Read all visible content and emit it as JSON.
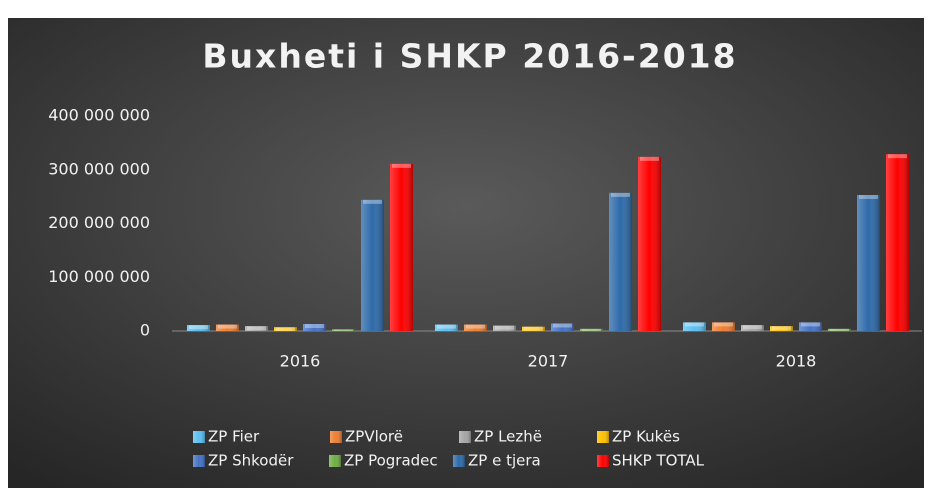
{
  "chart_data": {
    "type": "bar",
    "title": "Buxheti i SHKP 2016-2018",
    "categories": [
      "2016",
      "2017",
      "2018"
    ],
    "series": [
      {
        "name": "ZP Fier",
        "color": "#5bbef0",
        "values": [
          11000000,
          12000000,
          16000000
        ]
      },
      {
        "name": "ZPVlorë",
        "color": "#ed7d31",
        "values": [
          12000000,
          12000000,
          16000000
        ]
      },
      {
        "name": "ZP Lezhë",
        "color": "#a5a5a5",
        "values": [
          9000000,
          10000000,
          11000000
        ]
      },
      {
        "name": "ZP Kukës",
        "color": "#ffc000",
        "values": [
          7000000,
          8000000,
          9000000
        ]
      },
      {
        "name": "ZP Shkodër",
        "color": "#4472c4",
        "values": [
          13000000,
          14000000,
          16000000
        ]
      },
      {
        "name": "ZP Pogradec",
        "color": "#70ad47",
        "values": [
          3000000,
          4000000,
          4000000
        ]
      },
      {
        "name": "ZP e tjera",
        "color": "#2e6aa8",
        "values": [
          244000000,
          257000000,
          253000000
        ]
      },
      {
        "name": "SHKP TOTAL",
        "color": "#ff0000",
        "values": [
          311000000,
          324000000,
          329000000
        ]
      }
    ],
    "ylim": [
      0,
      400000000
    ],
    "yticks": [
      {
        "value": 0,
        "label": "0"
      },
      {
        "value": 100000000,
        "label": "100 000 000"
      },
      {
        "value": 200000000,
        "label": "200 000 000"
      },
      {
        "value": 300000000,
        "label": "300 000 000"
      },
      {
        "value": 400000000,
        "label": "400 000 000"
      }
    ],
    "grid": false,
    "legend": "bottom"
  }
}
